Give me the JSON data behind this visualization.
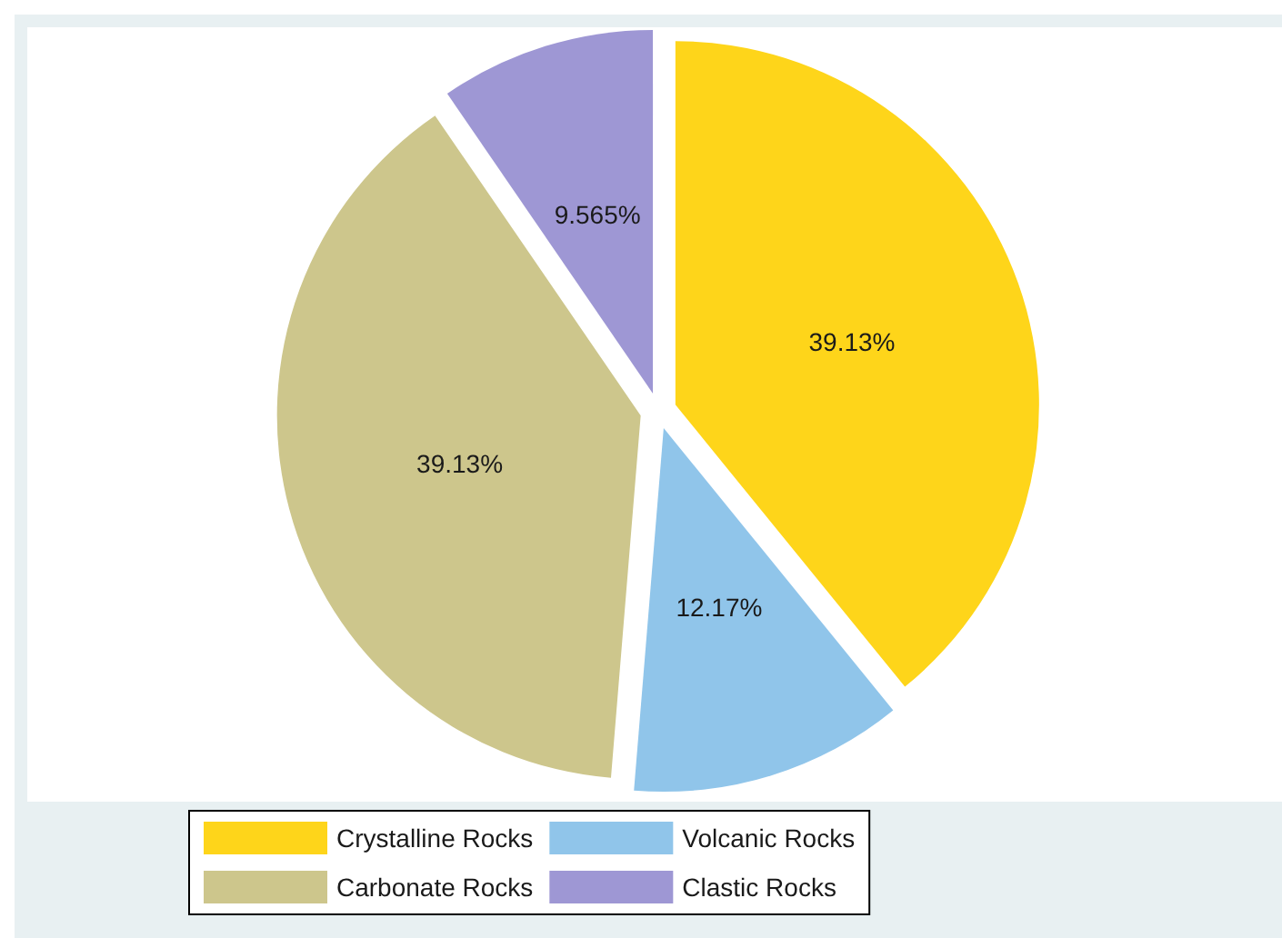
{
  "chart_data": {
    "type": "pie",
    "categories": [
      "Crystalline Rocks",
      "Volcanic Rocks",
      "Carbonate Rocks",
      "Clastic Rocks"
    ],
    "values": [
      39.13,
      12.17,
      39.13,
      9.565
    ],
    "colors": [
      "#fed51a",
      "#90c5ea",
      "#cdc68c",
      "#9e97d4"
    ],
    "value_labels": [
      "39.13%",
      "12.17%",
      "39.13%",
      "9.565%"
    ],
    "legend": "bottom"
  }
}
